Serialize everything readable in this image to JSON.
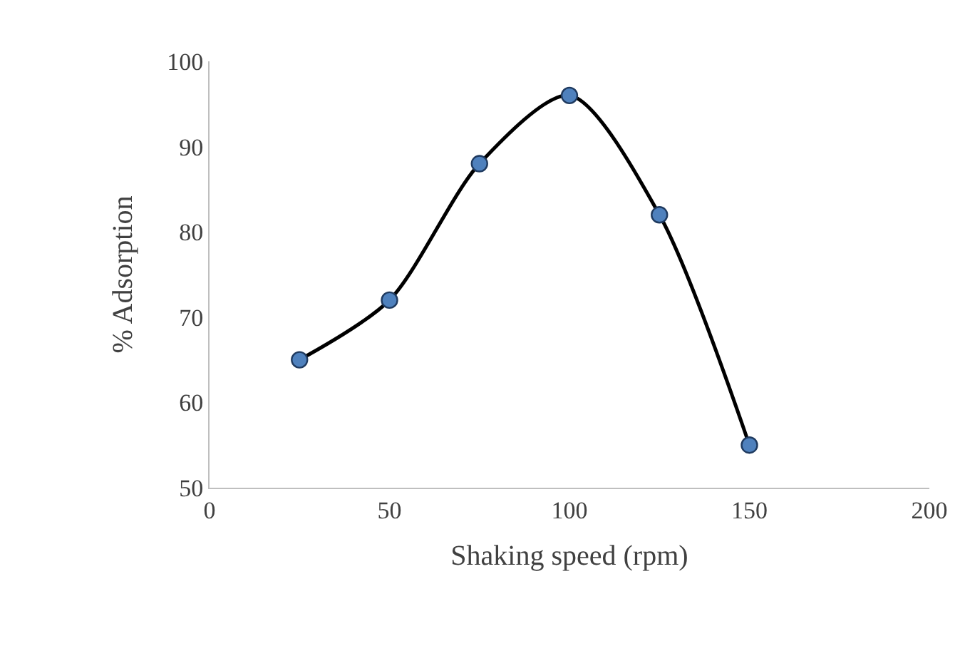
{
  "chart_data": {
    "type": "line",
    "xlabel": "Shaking speed (rpm)",
    "ylabel": "% Adsorption",
    "x": [
      25,
      50,
      75,
      100,
      125,
      150
    ],
    "series": [
      {
        "color": "#000000",
        "colors": [
          "#4f81bd",
          "#4f81bd",
          "#4f81bd",
          "#4f81bd",
          "#4f81bd",
          "#4f81bd"
        ],
        "values": [
          65,
          72,
          88,
          96,
          82,
          55
        ]
      }
    ],
    "xlim": [
      0,
      200
    ],
    "xticks": [
      0,
      50,
      100,
      150,
      200
    ],
    "ylim": [
      50,
      100
    ],
    "yticks": [
      50,
      60,
      70,
      80,
      90,
      100
    ],
    "marker": "circle",
    "line_style": "solid"
  }
}
